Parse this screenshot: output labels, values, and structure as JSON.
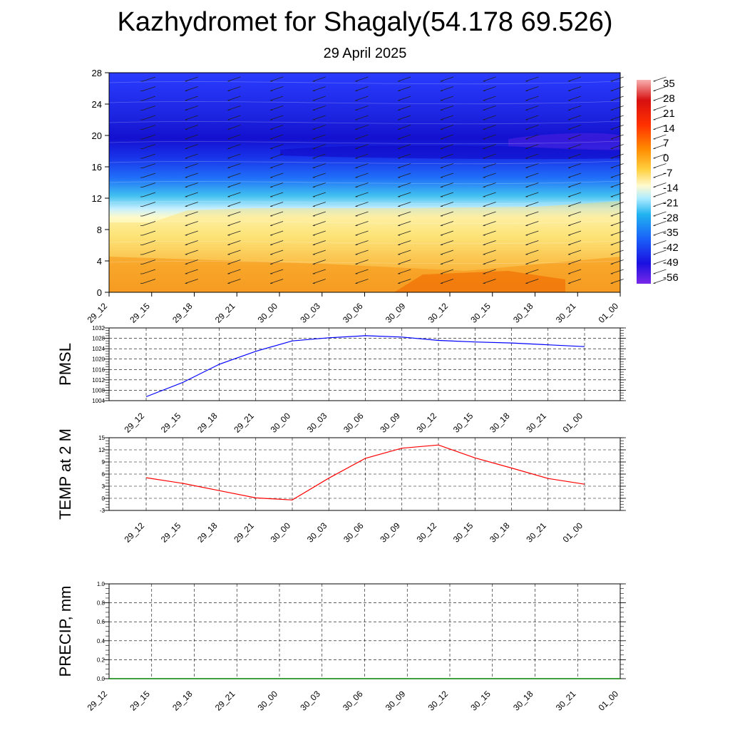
{
  "title": "Kazhydromet for Shagaly(54.178 69.526)",
  "subtitle": "29 April 2025",
  "chart_data": [
    {
      "type": "heatmap",
      "name": "cross-section",
      "x_ticks": [
        "29_12",
        "29_15",
        "29_18",
        "29_21",
        "30_00",
        "30_03",
        "30_06",
        "30_09",
        "30_12",
        "30_15",
        "30_18",
        "30_21",
        "01_00"
      ],
      "y_ticks": [
        "0",
        "4",
        "8",
        "12",
        "16",
        "20",
        "24",
        "28"
      ],
      "ylim": [
        0,
        28
      ],
      "colorbar_labels": [
        "35",
        "28",
        "21",
        "14",
        "7",
        "0",
        "-7",
        "-14",
        "-21",
        "-28",
        "-35",
        "-42",
        "-49",
        "-56"
      ],
      "colors": {
        "warm": "#f07a00",
        "yellow": "#fff7a0",
        "light_blue": "#c8f0ff",
        "cyan": "#20b4f0",
        "blue": "#1a3cff",
        "deep_blue": "#1210d8",
        "violet": "#7a28e8"
      }
    },
    {
      "type": "line",
      "name": "pmsl",
      "ylabel": "PMSL",
      "x_ticks": [
        "29_12",
        "29_15",
        "29_18",
        "29_21",
        "30_00",
        "30_03",
        "30_06",
        "30_09",
        "30_12",
        "30_15",
        "30_18",
        "30_21",
        "01_00"
      ],
      "y_ticks": [
        "1004",
        "1008",
        "1012",
        "1016",
        "1020",
        "1024",
        "1028",
        "1032"
      ],
      "ylim": [
        1004,
        1032
      ],
      "series": [
        {
          "values": [
            1005.5,
            1011,
            1018,
            1023,
            1027,
            1028.2,
            1029,
            1028.5,
            1027.2,
            1026.6,
            1026.2,
            1025.5,
            1024.8
          ],
          "color": "#0000ff"
        }
      ]
    },
    {
      "type": "line",
      "name": "temp",
      "ylabel": "TEMP at 2 M",
      "x_ticks": [
        "29_12",
        "29_15",
        "29_18",
        "29_21",
        "30_00",
        "30_03",
        "30_06",
        "30_09",
        "30_12",
        "30_15",
        "30_18",
        "30_21",
        "01_00"
      ],
      "y_ticks": [
        "-3",
        "0",
        "3",
        "6",
        "9",
        "12",
        "15"
      ],
      "ylim": [
        -3,
        15
      ],
      "series": [
        {
          "values": [
            5.1,
            3.7,
            1.9,
            0.1,
            -0.4,
            5.0,
            9.9,
            12.4,
            13.2,
            10.0,
            7.5,
            4.9,
            3.5
          ],
          "color": "#ff0000"
        }
      ]
    },
    {
      "type": "line",
      "name": "precip",
      "ylabel": "PRECIP, mm",
      "x_ticks": [
        "29_12",
        "29_15",
        "29_18",
        "29_21",
        "30_00",
        "30_03",
        "30_06",
        "30_09",
        "30_12",
        "30_15",
        "30_18",
        "30_21",
        "01_00"
      ],
      "y_ticks": [
        "0.0",
        "0.2",
        "0.4",
        "0.6",
        "0.8",
        "1.0"
      ],
      "ylim": [
        0,
        1
      ],
      "series": [
        {
          "values": [
            0,
            0,
            0,
            0,
            0,
            0,
            0,
            0,
            0,
            0,
            0,
            0,
            0
          ],
          "color": "#008000"
        }
      ]
    }
  ]
}
